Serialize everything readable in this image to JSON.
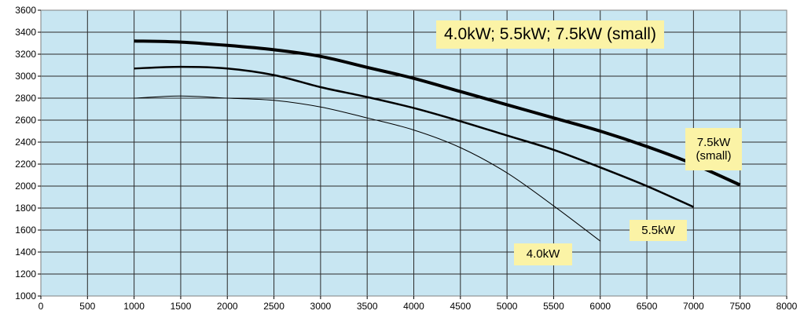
{
  "chart_data": {
    "type": "line",
    "title": "4.0kW; 5.5kW; 7.5kW (small)",
    "xlabel": "",
    "ylabel": "",
    "xlim": [
      0,
      8000
    ],
    "ylim": [
      1000,
      3600
    ],
    "x_ticks": [
      0,
      500,
      1000,
      1500,
      2000,
      2500,
      3000,
      3500,
      4000,
      4500,
      5000,
      5500,
      6000,
      6500,
      7000,
      7500,
      8000
    ],
    "y_ticks": [
      1000,
      1200,
      1400,
      1600,
      1800,
      2000,
      2200,
      2400,
      2600,
      2800,
      3000,
      3200,
      3400,
      3600
    ],
    "grid": true,
    "background": "#c8e6f2",
    "label_box_color": "#fbf3a6",
    "series": [
      {
        "key": "s75",
        "name": "7.5kW (small)",
        "label_lines": [
          "7.5kW",
          "(small)"
        ],
        "stroke": 4,
        "color": "#000000",
        "x": [
          1000,
          1500,
          2000,
          2500,
          3000,
          3500,
          4000,
          4500,
          5000,
          5500,
          6000,
          6500,
          7000,
          7500
        ],
        "y": [
          3320,
          3310,
          3280,
          3240,
          3180,
          3080,
          2980,
          2860,
          2740,
          2620,
          2500,
          2360,
          2200,
          2010
        ]
      },
      {
        "key": "s55",
        "name": "5.5kW",
        "label_lines": [
          "5.5kW"
        ],
        "stroke": 2.5,
        "color": "#000000",
        "x": [
          1000,
          1500,
          2000,
          2500,
          3000,
          3500,
          4000,
          4500,
          5000,
          5500,
          6000,
          6500,
          7000
        ],
        "y": [
          3070,
          3085,
          3070,
          3010,
          2900,
          2810,
          2710,
          2590,
          2460,
          2330,
          2170,
          2000,
          1810
        ]
      },
      {
        "key": "s40",
        "name": "4.0kW",
        "label_lines": [
          "4.0kW"
        ],
        "stroke": 1,
        "color": "#000000",
        "x": [
          1000,
          1500,
          2000,
          2500,
          3000,
          3500,
          4000,
          4500,
          5000,
          5500,
          6000
        ],
        "y": [
          2800,
          2820,
          2800,
          2780,
          2720,
          2620,
          2510,
          2350,
          2120,
          1820,
          1500
        ]
      }
    ]
  }
}
